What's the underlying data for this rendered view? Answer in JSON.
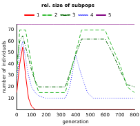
{
  "chart_data": {
    "type": "line",
    "title": "rel. size of subpops",
    "x_label": "generation",
    "y_label": "number of individuals",
    "x": [
      0,
      20,
      40,
      60,
      80,
      100,
      125,
      150,
      200,
      250,
      300,
      330,
      360,
      400,
      440,
      480,
      520,
      560,
      600,
      650,
      700,
      750,
      800
    ],
    "series": [
      {
        "name": "1",
        "color": "#ff0000",
        "line_style": "solid",
        "values": [
          15,
          40,
          55,
          30,
          10,
          3,
          0,
          0,
          0,
          0,
          0,
          0,
          0,
          0,
          0,
          0,
          0,
          0,
          0,
          0,
          0,
          0,
          0
        ]
      },
      {
        "name": "2",
        "color": "#33bb33",
        "line_style": "dashed",
        "values": [
          30,
          70,
          70,
          70,
          55,
          40,
          25,
          15,
          15,
          15,
          15,
          15,
          30,
          50,
          70,
          70,
          70,
          70,
          70,
          55,
          40,
          20,
          15
        ]
      },
      {
        "name": "3",
        "color": "#006600",
        "line_style": "dashdot",
        "values": [
          40,
          60,
          65,
          55,
          45,
          35,
          25,
          20,
          20,
          20,
          20,
          20,
          32,
          48,
          62,
          62,
          62,
          62,
          62,
          50,
          35,
          22,
          20
        ]
      },
      {
        "name": "4",
        "color": "#3333ff",
        "line_style": "dotted",
        "values": [
          25,
          50,
          60,
          45,
          30,
          20,
          15,
          12,
          10,
          10,
          10,
          10,
          20,
          48,
          30,
          15,
          10,
          10,
          10,
          10,
          10,
          10,
          10
        ]
      },
      {
        "name": "5",
        "color": "#800080",
        "line_style": "solid",
        "values": [
          75,
          75,
          75,
          75,
          75,
          75,
          75,
          75,
          75,
          75,
          75,
          75,
          75,
          75,
          75,
          75,
          75,
          75,
          75,
          75,
          75,
          75,
          75
        ]
      }
    ],
    "xlim": [
      0,
      800
    ],
    "xticks": [
      0,
      100,
      200,
      300,
      400,
      500,
      600,
      700,
      800
    ],
    "ylim": [
      0,
      75
    ],
    "yticks": [
      10,
      20,
      30,
      40,
      50,
      60,
      70
    ],
    "grid": false,
    "legend": "top"
  }
}
